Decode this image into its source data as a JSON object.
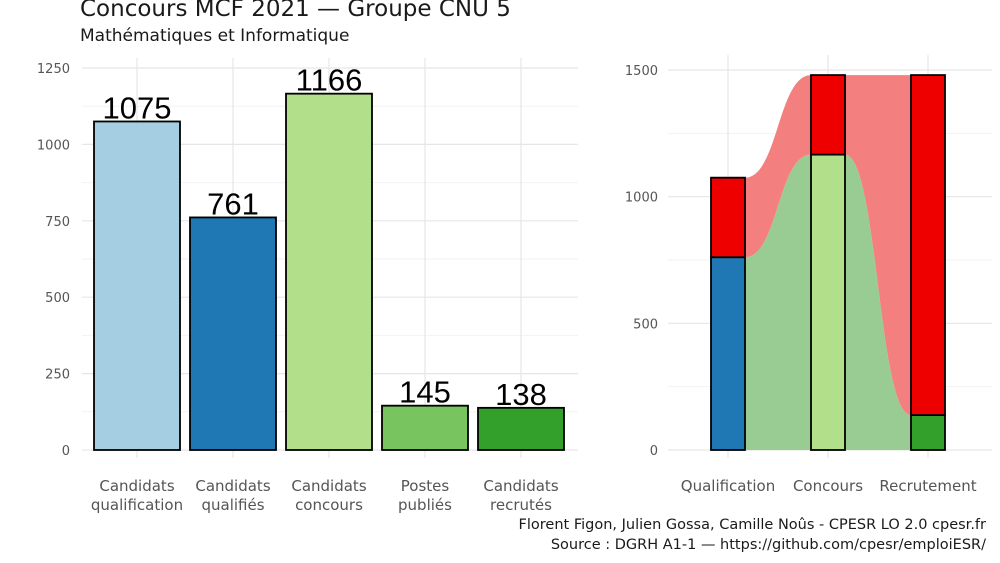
{
  "title": "Concours MCF  2021  —  Groupe CNU 5",
  "subtitle": "Mathématiques et Informatique",
  "caption": {
    "line1": "Florent Figon, Julien Gossa, Camille Noûs - CPESR LO 2.0 cpesr.fr",
    "line2": "Source : DGRH A1-1 — https://github.com/cpesr/emploiESR/"
  },
  "chart_data": [
    {
      "type": "bar",
      "categories": [
        [
          "Candidats",
          "qualification"
        ],
        [
          "Candidats",
          "qualifiés"
        ],
        [
          "Candidats",
          "concours"
        ],
        [
          "Postes",
          "publiés"
        ],
        [
          "Candidats",
          "recrutés"
        ]
      ],
      "values": [
        1075,
        761,
        1166,
        145,
        138
      ],
      "colors": [
        "#a6cee3",
        "#1f78b4",
        "#b2df8a",
        "#78c45f",
        "#33a02c"
      ],
      "ylim": [
        0,
        1250
      ],
      "yticks": [
        0,
        250,
        500,
        750,
        1000,
        1250
      ],
      "grid": true,
      "data_labels": true
    },
    {
      "type": "bar",
      "subtype": "alluvial stacked bars",
      "categories": [
        "Qualification",
        "Concours",
        "Recrutement"
      ],
      "series": [
        {
          "values": [
            761,
            1166,
            138
          ],
          "colors": [
            "#1f78b4",
            "#b2df8a",
            "#33a02c"
          ],
          "flow_color": "#99cc93"
        },
        {
          "values": [
            314,
            314,
            1342
          ],
          "colors": [
            "#ee0000",
            "#ee0000",
            "#ee0000"
          ],
          "flow_color": "#f47f7f"
        }
      ],
      "ylim": [
        0,
        1500
      ],
      "yticks": [
        0,
        500,
        1000,
        1500
      ],
      "grid": true
    }
  ]
}
